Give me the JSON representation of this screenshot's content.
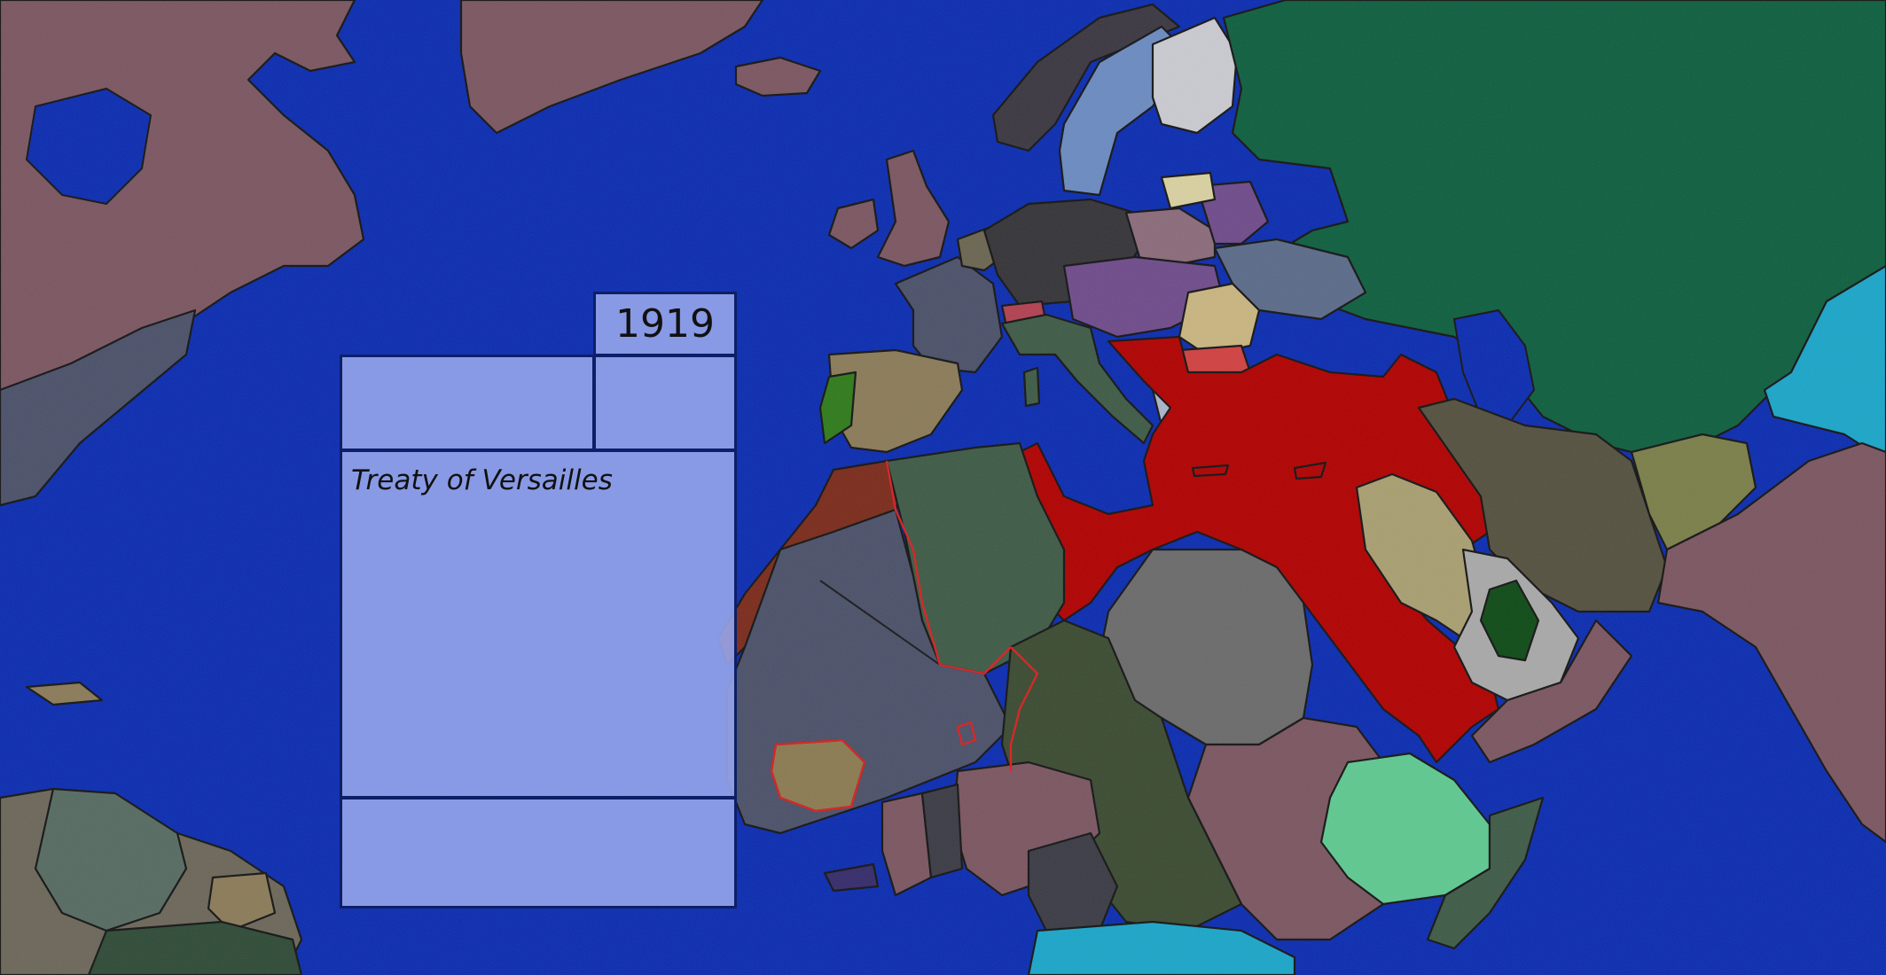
{
  "panel": {
    "year": "1919",
    "title": "Treaty of Versailles"
  },
  "colors": {
    "ocean": "#0a2bb0",
    "panel_fill": "#96a5eb",
    "panel_border": "#0d1f66",
    "ottoman_red": "#b00000",
    "russia_green": "#0d5e3e",
    "britain_brown": "#7a5560",
    "france_slate": "#4a5068"
  }
}
